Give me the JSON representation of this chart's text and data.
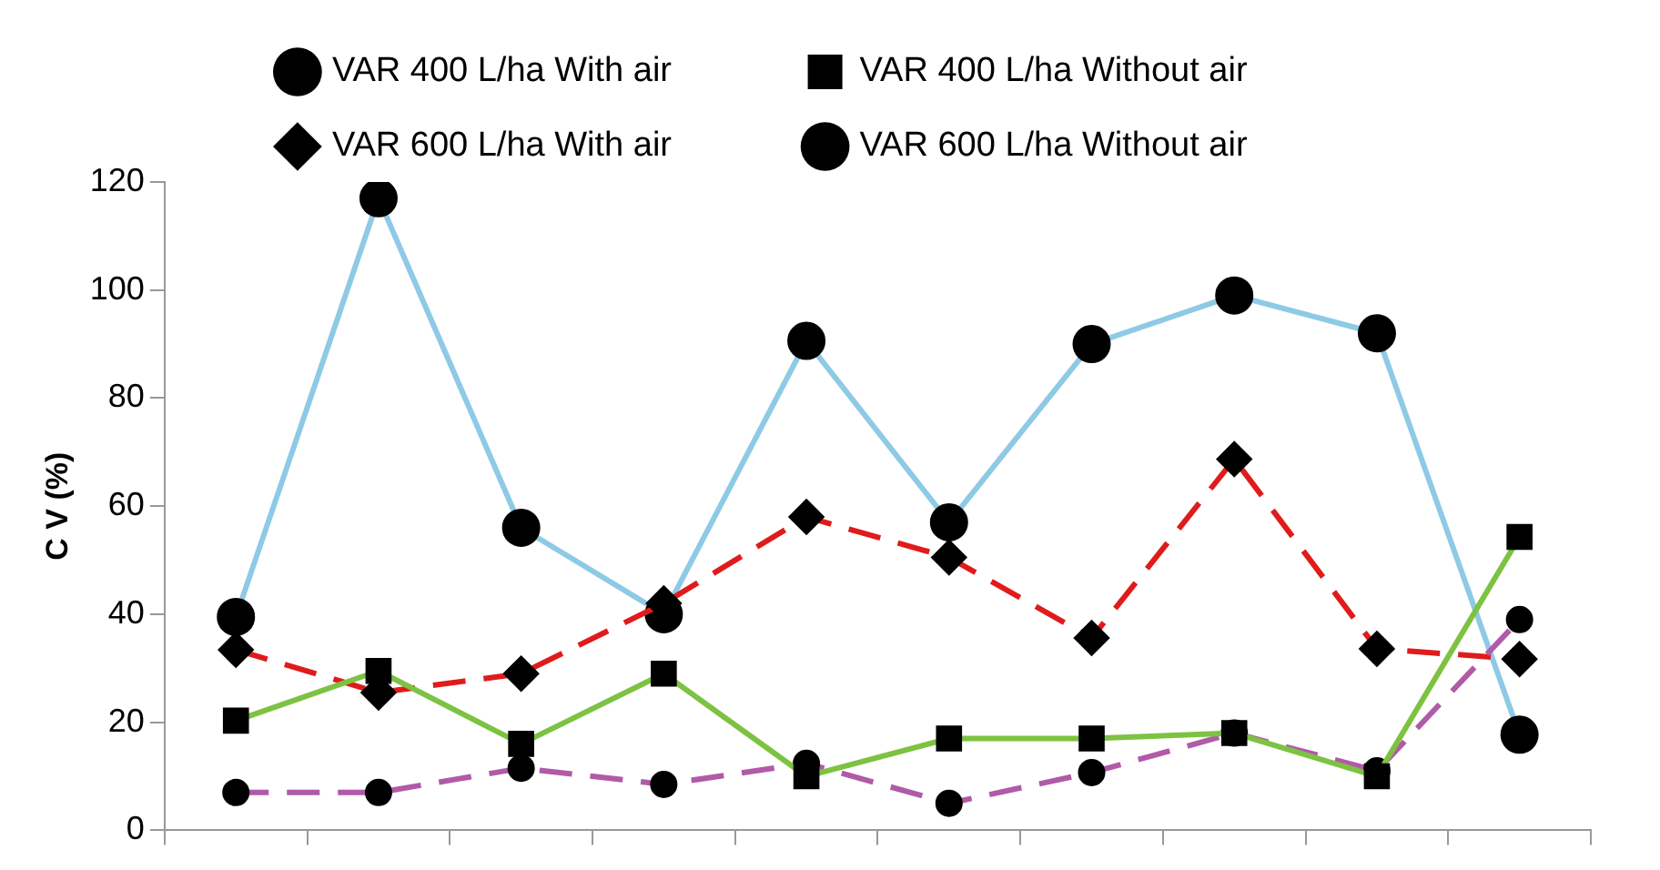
{
  "chart_data": {
    "type": "line",
    "ylabel": "C V (%)",
    "categories": [
      null,
      null,
      null,
      null,
      null,
      null,
      null,
      null,
      null,
      null
    ],
    "ylim": [
      0,
      120
    ],
    "yticks": [
      0,
      20,
      40,
      60,
      80,
      100,
      120
    ],
    "grid": false,
    "legend": "top",
    "tick_labels": "y",
    "series": [
      {
        "name": "VAR 400 L/ha With air",
        "color": "#b05aa8",
        "marker": "circle",
        "line_style": "dashed",
        "values": [
          7,
          7,
          11.5,
          8.5,
          12.4,
          5,
          10.7,
          18,
          11,
          39
        ]
      },
      {
        "name": "VAR 400 L/ha Without air",
        "color": "#7dc242",
        "marker": "square",
        "line_style": "solid",
        "values": [
          20.3,
          29.5,
          16,
          29,
          10,
          17,
          17,
          18,
          10,
          54.3
        ]
      },
      {
        "name": "VAR 600 L/ha With air",
        "color": "#e01b1b",
        "marker": "diamond",
        "line_style": "dashed",
        "values": [
          33.4,
          25.5,
          29,
          42,
          58,
          50.5,
          35.6,
          68.7,
          33.6,
          31.7
        ]
      },
      {
        "name": "VAR 600 L/ha Without air",
        "color": "#8ecae6",
        "marker": "circle",
        "line_style": "solid",
        "values": [
          39.5,
          117,
          56,
          40,
          90.6,
          57,
          90,
          99,
          92,
          17.7
        ]
      }
    ]
  }
}
